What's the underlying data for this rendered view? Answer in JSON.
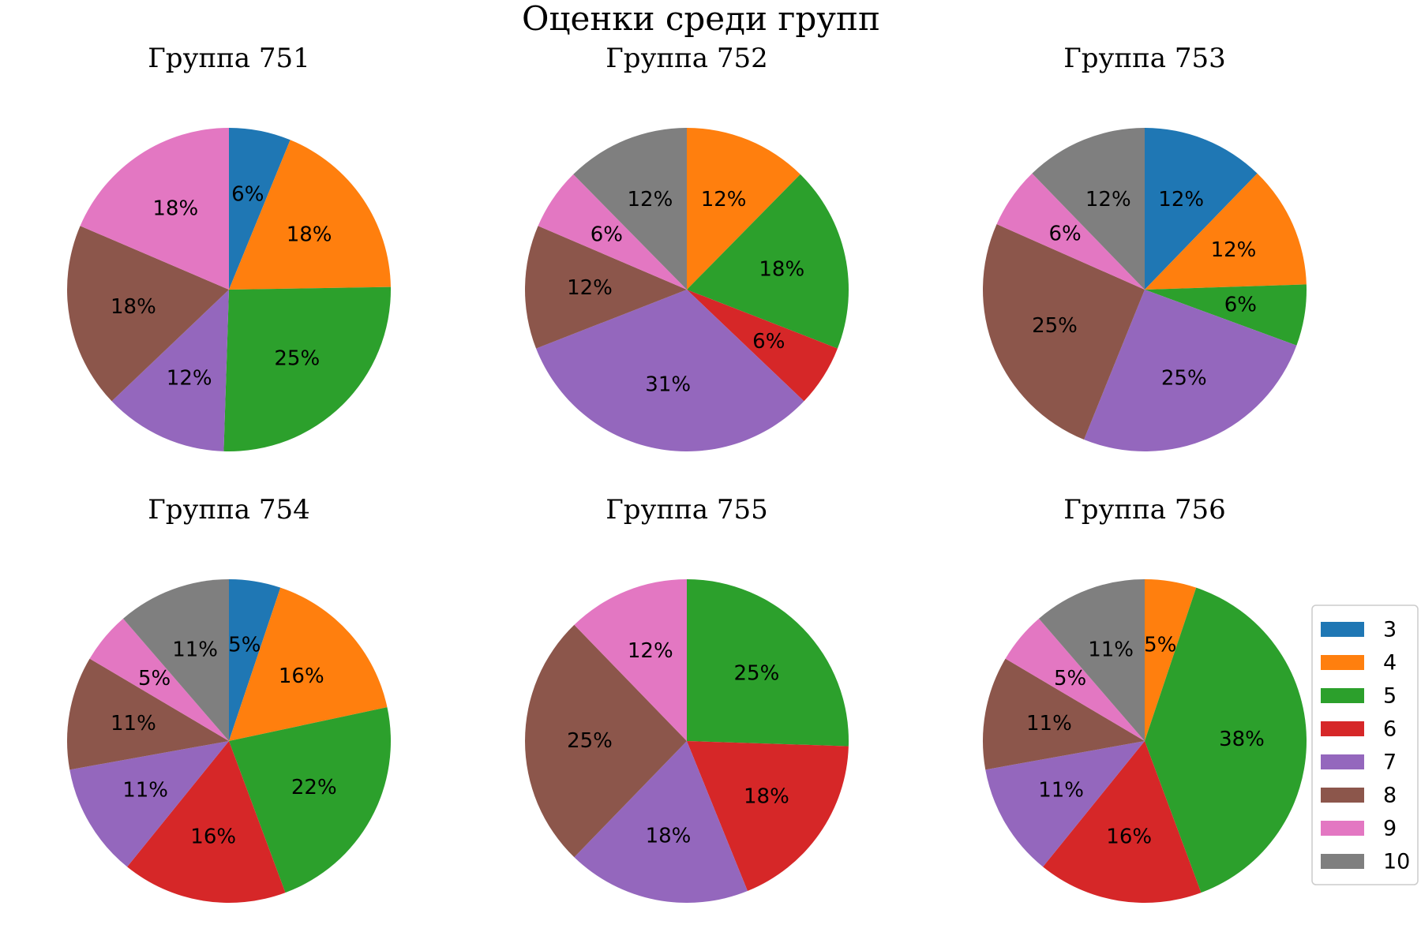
{
  "suptitle": "Оценки среди групп",
  "colors": {
    "3": "#1f77b4",
    "4": "#ff7f0e",
    "5": "#2ca02c",
    "6": "#d62728",
    "7": "#9467bd",
    "8": "#8c564b",
    "9": "#e377c2",
    "10": "#7f7f7f"
  },
  "legend": {
    "placement": "right",
    "entries": [
      "3",
      "4",
      "5",
      "6",
      "7",
      "8",
      "9",
      "10"
    ]
  },
  "chart_data": [
    {
      "type": "pie",
      "title": "Группа 751",
      "slices": [
        {
          "category": "3",
          "value": 6,
          "label": "6%"
        },
        {
          "category": "4",
          "value": 18,
          "label": "18%"
        },
        {
          "category": "5",
          "value": 25,
          "label": "25%"
        },
        {
          "category": "7",
          "value": 12,
          "label": "12%"
        },
        {
          "category": "8",
          "value": 18,
          "label": "18%"
        },
        {
          "category": "9",
          "value": 18,
          "label": "18%"
        }
      ]
    },
    {
      "type": "pie",
      "title": "Группа 752",
      "slices": [
        {
          "category": "4",
          "value": 12,
          "label": "12%"
        },
        {
          "category": "5",
          "value": 18,
          "label": "18%"
        },
        {
          "category": "6",
          "value": 6,
          "label": "6%"
        },
        {
          "category": "7",
          "value": 31,
          "label": "31%"
        },
        {
          "category": "8",
          "value": 12,
          "label": "12%"
        },
        {
          "category": "9",
          "value": 6,
          "label": "6%"
        },
        {
          "category": "10",
          "value": 12,
          "label": "12%"
        }
      ]
    },
    {
      "type": "pie",
      "title": "Группа 753",
      "slices": [
        {
          "category": "3",
          "value": 12,
          "label": "12%"
        },
        {
          "category": "4",
          "value": 12,
          "label": "12%"
        },
        {
          "category": "5",
          "value": 6,
          "label": "6%"
        },
        {
          "category": "7",
          "value": 25,
          "label": "25%"
        },
        {
          "category": "8",
          "value": 25,
          "label": "25%"
        },
        {
          "category": "9",
          "value": 6,
          "label": "6%"
        },
        {
          "category": "10",
          "value": 12,
          "label": "12%"
        }
      ]
    },
    {
      "type": "pie",
      "title": "Группа 754",
      "slices": [
        {
          "category": "3",
          "value": 5,
          "label": "5%"
        },
        {
          "category": "4",
          "value": 16,
          "label": "16%"
        },
        {
          "category": "5",
          "value": 22,
          "label": "22%"
        },
        {
          "category": "6",
          "value": 16,
          "label": "16%"
        },
        {
          "category": "7",
          "value": 11,
          "label": "11%"
        },
        {
          "category": "8",
          "value": 11,
          "label": "11%"
        },
        {
          "category": "9",
          "value": 5,
          "label": "5%"
        },
        {
          "category": "10",
          "value": 11,
          "label": "11%"
        }
      ]
    },
    {
      "type": "pie",
      "title": "Группа 755",
      "slices": [
        {
          "category": "5",
          "value": 25,
          "label": "25%"
        },
        {
          "category": "6",
          "value": 18,
          "label": "18%"
        },
        {
          "category": "7",
          "value": 18,
          "label": "18%"
        },
        {
          "category": "8",
          "value": 25,
          "label": "25%"
        },
        {
          "category": "9",
          "value": 12,
          "label": "12%"
        }
      ]
    },
    {
      "type": "pie",
      "title": "Группа 756",
      "slices": [
        {
          "category": "4",
          "value": 5,
          "label": "5%"
        },
        {
          "category": "5",
          "value": 38,
          "label": "38%"
        },
        {
          "category": "6",
          "value": 16,
          "label": "16%"
        },
        {
          "category": "7",
          "value": 11,
          "label": "11%"
        },
        {
          "category": "8",
          "value": 11,
          "label": "11%"
        },
        {
          "category": "9",
          "value": 5,
          "label": "5%"
        },
        {
          "category": "10",
          "value": 11,
          "label": "11%"
        }
      ]
    }
  ]
}
